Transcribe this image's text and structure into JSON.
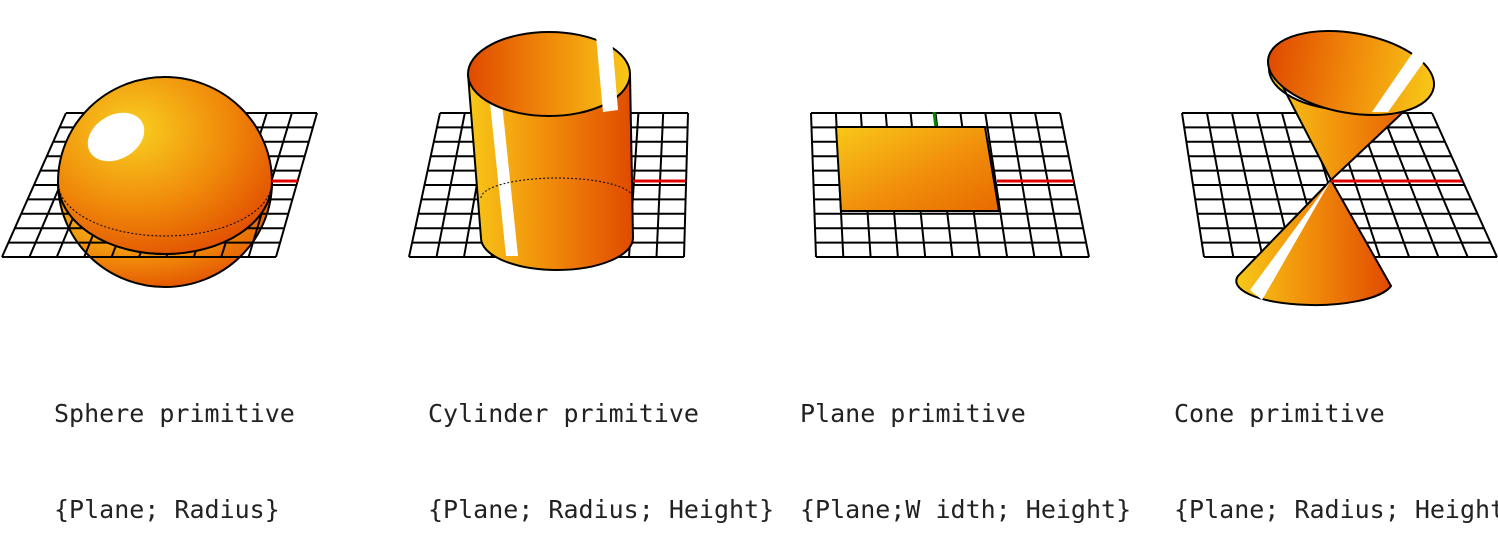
{
  "colors": {
    "surface_dark": "#e04a00",
    "surface_mid": "#f08a0a",
    "surface_light": "#f8c818",
    "highlight": "#ffffff",
    "grid": "#000000",
    "x_axis": "#e00000",
    "y_axis": "#008800"
  },
  "primitives": [
    {
      "name": "Sphere primitive",
      "params": "{Plane; Radius}"
    },
    {
      "name": "Cylinder primitive",
      "params": "{Plane; Radius; Height}"
    },
    {
      "name": "Plane primitive",
      "params": "{Plane;W idth; Height}"
    },
    {
      "name": "Cone primitive",
      "params": "{Plane; Radius; Height"
    }
  ]
}
